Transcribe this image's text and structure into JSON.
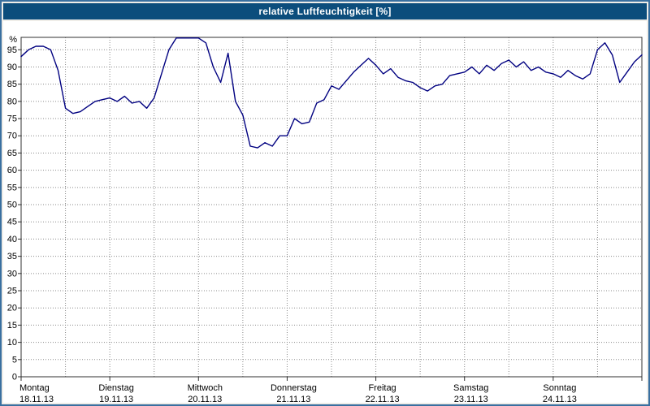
{
  "window": {
    "title": "relative Luftfeuchtigkeit [%]"
  },
  "chart_data": {
    "type": "line",
    "title": "relative Luftfeuchtigkeit [%]",
    "xlabel": "",
    "ylabel": "%",
    "y_axis_unit": "%",
    "ylim": [
      0,
      100
    ],
    "y_ticks": [
      0,
      5,
      10,
      15,
      20,
      25,
      30,
      35,
      40,
      45,
      50,
      55,
      60,
      65,
      70,
      75,
      80,
      85,
      90,
      95
    ],
    "grid": true,
    "grid_color": "#8a8a8a",
    "line_color": "#000080",
    "plot_border_color": "#303030",
    "legend_position": "none",
    "x_day_ticks": [
      {
        "label": "Montag",
        "date": "18.11.13",
        "t": 0
      },
      {
        "label": "Dienstag",
        "date": "19.11.13",
        "t": 24
      },
      {
        "label": "Mittwoch",
        "date": "20.11.13",
        "t": 48
      },
      {
        "label": "Donnerstag",
        "date": "21.11.13",
        "t": 72
      },
      {
        "label": "Freitag",
        "date": "22.11.13",
        "t": 96
      },
      {
        "label": "Samstag",
        "date": "23.11.13",
        "t": 120
      },
      {
        "label": "Sonntag",
        "date": "24.11.13",
        "t": 144
      }
    ],
    "x_hours_range": [
      0,
      168
    ],
    "x_gridline_interval_hours": 12,
    "series": [
      {
        "name": "relative Luftfeuchtigkeit",
        "x_hours": [
          0,
          2,
          4,
          6,
          8,
          10,
          12,
          14,
          16,
          18,
          20,
          22,
          24,
          26,
          28,
          30,
          32,
          34,
          36,
          38,
          40,
          42,
          44,
          46,
          48,
          50,
          52,
          54,
          56,
          58,
          60,
          62,
          64,
          66,
          68,
          70,
          72,
          74,
          76,
          78,
          80,
          82,
          84,
          86,
          88,
          90,
          92,
          94,
          96,
          98,
          100,
          102,
          104,
          106,
          108,
          110,
          112,
          114,
          116,
          118,
          120,
          122,
          124,
          126,
          128,
          130,
          132,
          134,
          136,
          138,
          140,
          142,
          144,
          146,
          148,
          150,
          152,
          154,
          156,
          158,
          160,
          162,
          164,
          166,
          168
        ],
        "values": [
          93,
          95,
          96,
          96,
          95,
          89,
          78,
          76.5,
          77,
          78.5,
          80,
          80.5,
          81,
          80,
          81.5,
          79.5,
          80,
          78,
          81,
          88,
          95,
          98.5,
          99.5,
          99.5,
          99,
          97,
          90,
          85.5,
          94,
          80,
          76,
          67,
          66.5,
          68,
          67,
          70,
          70,
          75,
          73.5,
          74,
          79.5,
          80.5,
          84.5,
          83.5,
          86,
          88.5,
          90.5,
          92.5,
          90.5,
          88,
          89.5,
          87,
          86,
          85.5,
          84,
          83,
          84.5,
          85,
          87.5,
          88,
          88.5,
          90,
          88,
          90.5,
          89,
          91,
          92,
          90,
          91.5,
          89,
          90,
          88.5,
          88,
          87,
          89,
          87.5,
          86.5,
          88,
          95,
          97,
          93.5,
          85.5,
          88.5,
          91.5,
          93.5
        ]
      }
    ]
  }
}
